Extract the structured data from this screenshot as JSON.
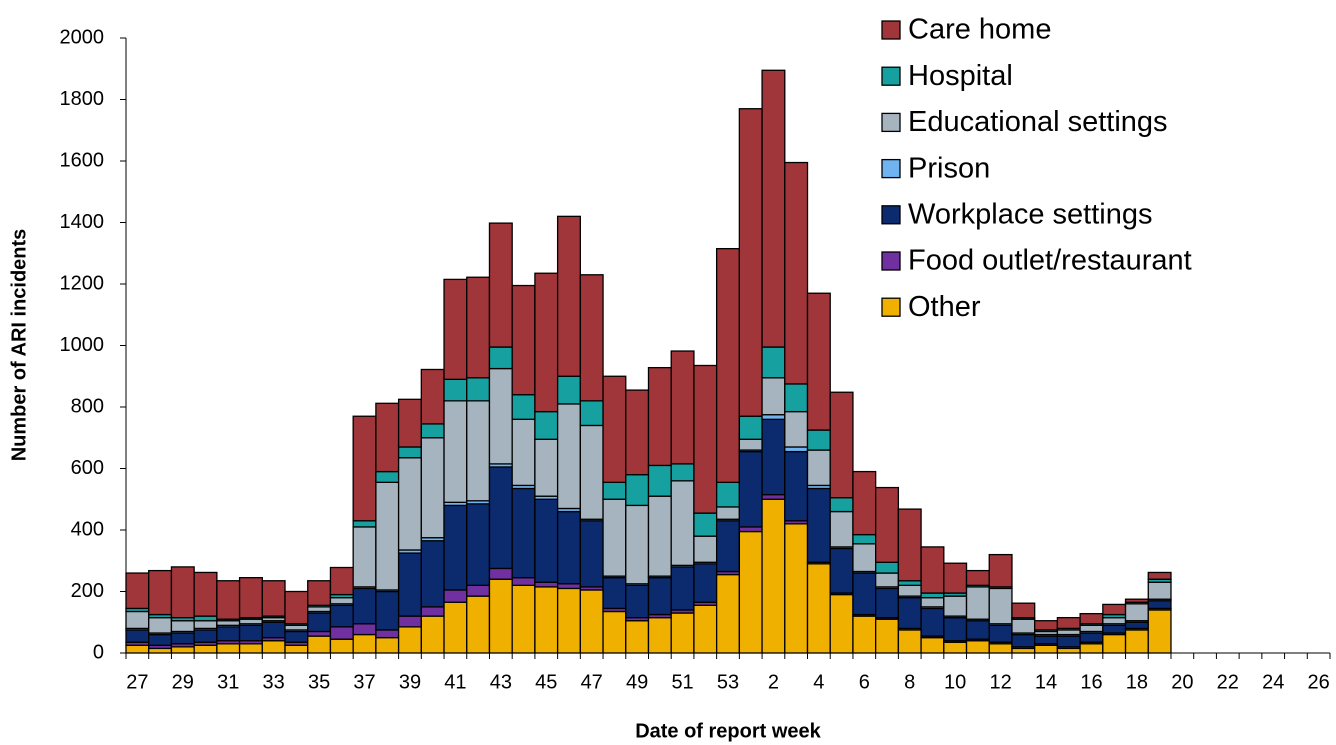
{
  "chart_data": {
    "type": "stacked_bar",
    "xlabel": "Date of report week",
    "ylabel": "Number of ARI incidents",
    "categories": [
      "27",
      null,
      "29",
      null,
      "31",
      null,
      "33",
      null,
      "35",
      null,
      "37",
      null,
      "39",
      null,
      "41",
      null,
      "43",
      null,
      "45",
      null,
      "47",
      null,
      "49",
      null,
      "51",
      null,
      "53",
      null,
      "2",
      null,
      "4",
      null,
      "6",
      null,
      "8",
      null,
      "10",
      null,
      "12",
      null,
      "14",
      null,
      "16",
      null,
      "18",
      null,
      "20",
      null,
      "22",
      null,
      "24",
      null,
      "26"
    ],
    "series": [
      {
        "name": "Other",
        "color": "#f0b000",
        "values": [
          25,
          15,
          20,
          25,
          30,
          30,
          40,
          25,
          55,
          45,
          60,
          50,
          85,
          120,
          165,
          185,
          240,
          220,
          215,
          210,
          205,
          135,
          105,
          115,
          130,
          155,
          255,
          395,
          500,
          420,
          290,
          190,
          120,
          110,
          75,
          50,
          35,
          40,
          30,
          15,
          25,
          15,
          30,
          60,
          75,
          140,
          null,
          null,
          null,
          null,
          null,
          null,
          null
        ]
      },
      {
        "name": "Food outlet/restaurant",
        "color": "#7030a0",
        "values": [
          10,
          10,
          10,
          10,
          10,
          10,
          10,
          10,
          15,
          40,
          35,
          25,
          35,
          30,
          40,
          35,
          35,
          25,
          15,
          15,
          10,
          10,
          10,
          10,
          10,
          10,
          10,
          15,
          15,
          10,
          5,
          5,
          5,
          5,
          5,
          5,
          5,
          5,
          5,
          5,
          5,
          5,
          5,
          5,
          5,
          5,
          null,
          null,
          null,
          null,
          null,
          null,
          null
        ]
      },
      {
        "name": "Workplace settings",
        "color": "#0c2a6e",
        "values": [
          40,
          35,
          35,
          40,
          45,
          50,
          50,
          35,
          60,
          70,
          115,
          125,
          205,
          215,
          275,
          265,
          330,
          290,
          270,
          235,
          215,
          100,
          105,
          120,
          140,
          125,
          165,
          245,
          245,
          225,
          240,
          145,
          135,
          95,
          100,
          90,
          75,
          60,
          55,
          40,
          25,
          35,
          30,
          25,
          20,
          25,
          null,
          null,
          null,
          null,
          null,
          null,
          null
        ]
      },
      {
        "name": "Prison",
        "color": "#6fb4f0",
        "values": [
          5,
          5,
          5,
          5,
          5,
          5,
          5,
          5,
          5,
          5,
          5,
          5,
          10,
          10,
          10,
          10,
          10,
          10,
          10,
          10,
          5,
          5,
          5,
          5,
          5,
          5,
          5,
          5,
          15,
          15,
          10,
          5,
          5,
          5,
          5,
          5,
          5,
          5,
          5,
          5,
          5,
          5,
          5,
          5,
          5,
          5,
          null,
          null,
          null,
          null,
          null,
          null,
          null
        ]
      },
      {
        "name": "Educational settings",
        "color": "#a6b4bf",
        "values": [
          55,
          50,
          35,
          25,
          15,
          15,
          10,
          15,
          15,
          20,
          195,
          350,
          300,
          325,
          330,
          325,
          310,
          215,
          185,
          340,
          305,
          250,
          255,
          260,
          275,
          85,
          40,
          35,
          120,
          115,
          115,
          115,
          90,
          45,
          35,
          30,
          65,
          105,
          115,
          45,
          10,
          15,
          20,
          20,
          55,
          55,
          null,
          null,
          null,
          null,
          null,
          null,
          null
        ]
      },
      {
        "name": "Hospital",
        "color": "#17a0a0",
        "values": [
          10,
          10,
          10,
          15,
          5,
          5,
          5,
          5,
          5,
          10,
          20,
          35,
          35,
          45,
          70,
          75,
          70,
          80,
          90,
          90,
          80,
          55,
          100,
          100,
          55,
          75,
          80,
          75,
          100,
          90,
          65,
          45,
          30,
          35,
          15,
          15,
          10,
          5,
          5,
          5,
          5,
          5,
          5,
          10,
          5,
          10,
          null,
          null,
          null,
          null,
          null,
          null,
          null
        ]
      },
      {
        "name": "Care home",
        "color": "#a0363a",
        "values": [
          115,
          143,
          165,
          142,
          125,
          130,
          115,
          105,
          80,
          88,
          340,
          222,
          155,
          177,
          325,
          327,
          403,
          355,
          450,
          520,
          410,
          345,
          275,
          318,
          367,
          480,
          760,
          1000,
          900,
          720,
          445,
          343,
          205,
          243,
          233,
          150,
          97,
          48,
          105,
          47,
          30,
          35,
          33,
          33,
          10,
          22,
          null,
          null,
          null,
          null,
          null,
          null,
          null
        ]
      }
    ],
    "ylim": [
      0,
      2000
    ],
    "yticks": [
      0,
      200,
      400,
      600,
      800,
      1000,
      1200,
      1400,
      1600,
      1800,
      2000
    ],
    "grid": false,
    "legend": "top-right"
  }
}
